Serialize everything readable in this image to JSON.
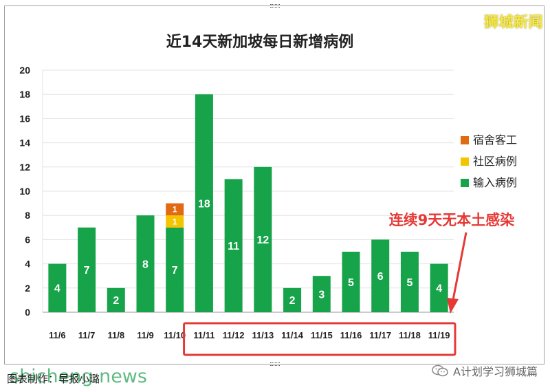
{
  "brand": "狮城新闻",
  "caption": "图表制作：早报小璐",
  "watermark_url": "shicheng.news",
  "account": "A计划学习狮城篇",
  "icons": {
    "account": "wechat-icon"
  },
  "colors": {
    "imported": "#16a34a",
    "community": "#f5c400",
    "dormitory": "#e06b12",
    "highlight": "#e53935",
    "brand": "#f4e84a"
  },
  "chart_data": {
    "type": "bar",
    "stacked": true,
    "title": "近14天新加坡每日新增病例",
    "xlabel": "",
    "ylabel": "",
    "ylim": [
      0,
      20
    ],
    "yticks": [
      0,
      2,
      4,
      6,
      8,
      10,
      12,
      14,
      16,
      18,
      20
    ],
    "grid": true,
    "legend_position": "right",
    "categories": [
      "11/6",
      "11/7",
      "11/8",
      "11/9",
      "11/10",
      "11/11",
      "11/12",
      "11/13",
      "11/14",
      "11/15",
      "11/16",
      "11/17",
      "11/18",
      "11/19"
    ],
    "series": [
      {
        "name": "输入病例",
        "color": "#16a34a",
        "values": [
          4,
          7,
          2,
          8,
          7,
          18,
          11,
          12,
          2,
          3,
          5,
          6,
          5,
          4
        ]
      },
      {
        "name": "社区病例",
        "color": "#f5c400",
        "values": [
          0,
          0,
          0,
          0,
          1,
          0,
          0,
          0,
          0,
          0,
          0,
          0,
          0,
          0
        ]
      },
      {
        "name": "宿舍客工",
        "color": "#e06b12",
        "values": [
          0,
          0,
          0,
          0,
          1,
          0,
          0,
          0,
          0,
          0,
          0,
          0,
          0,
          0
        ]
      }
    ],
    "legend_order": [
      "宿舍客工",
      "社区病例",
      "输入病例"
    ],
    "annotation": {
      "text": "连续9天无本土感染",
      "from_category": "11/11",
      "to_category": "11/19"
    }
  }
}
